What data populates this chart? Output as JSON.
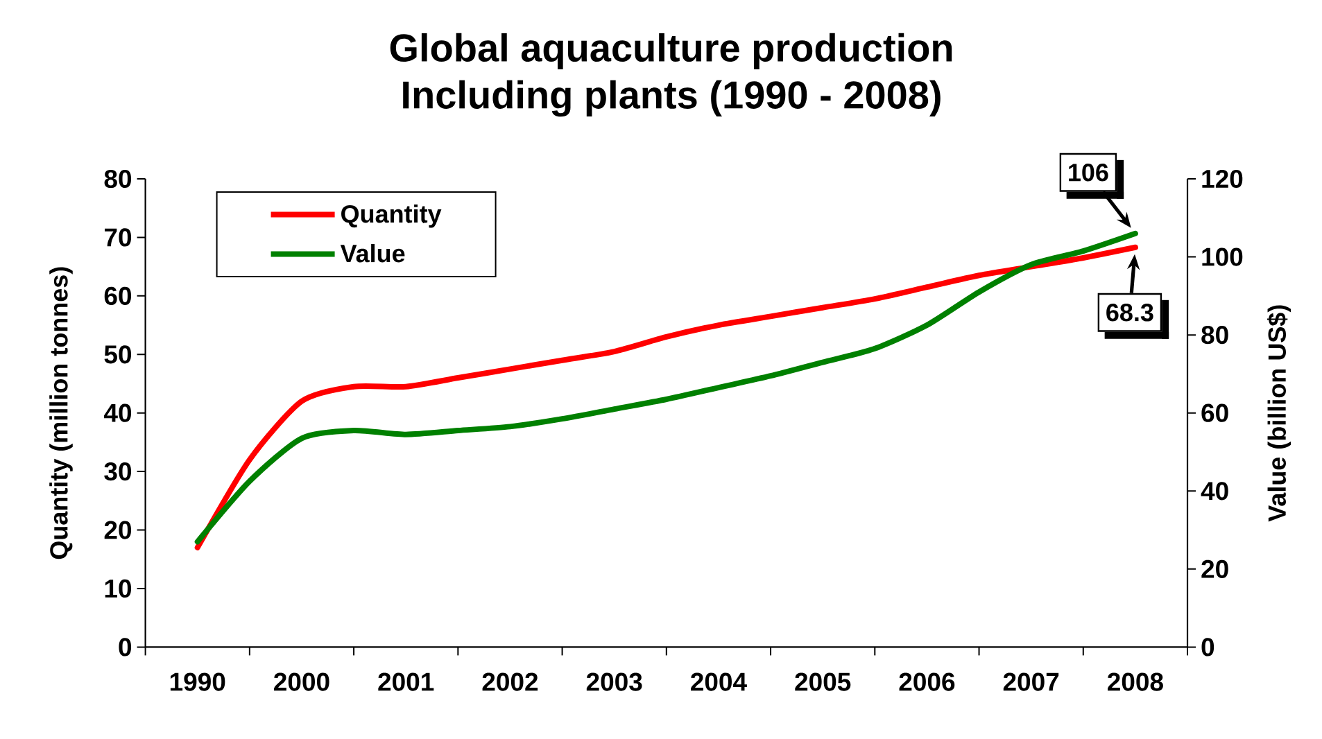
{
  "chart_data": {
    "type": "line",
    "title": "Global aquaculture production",
    "subtitle": "Including plants (1990 - 2008)",
    "ylabel": "Quantity (million tonnes)",
    "y2label": "Value (billion US$)",
    "categories": [
      "1990",
      null,
      "2000",
      null,
      "2001",
      null,
      "2002",
      null,
      "2003",
      null,
      "2004",
      null,
      "2005",
      null,
      "2006",
      null,
      "2007",
      null,
      "2008"
    ],
    "series": [
      {
        "name": "Quantity",
        "color": "#ff0000",
        "values": [
          17,
          32,
          42,
          44.5,
          44.5,
          46,
          47.5,
          49,
          50.5,
          53,
          55,
          56.5,
          58,
          59.5,
          61.5,
          63.5,
          65,
          66.5,
          68.3
        ],
        "value_labels": [
          null,
          null,
          null,
          null,
          null,
          null,
          null,
          null,
          null,
          null,
          null,
          null,
          null,
          null,
          null,
          null,
          null,
          null,
          "68.3"
        ]
      },
      {
        "name": "Value",
        "color": "#008000",
        "axis": "y2",
        "values": [
          27,
          42.5,
          53.5,
          55.5,
          54.5,
          55.5,
          56.5,
          58.5,
          61,
          63.5,
          66.5,
          69.5,
          73,
          76.5,
          82.5,
          91,
          98,
          101.5,
          106
        ],
        "value_labels": [
          null,
          null,
          null,
          null,
          null,
          null,
          null,
          null,
          null,
          null,
          null,
          null,
          null,
          null,
          null,
          null,
          null,
          null,
          "106"
        ]
      }
    ],
    "ylim": [
      0,
      80
    ],
    "yticks": [
      0,
      10,
      20,
      30,
      40,
      50,
      60,
      70,
      80
    ],
    "y2lim": [
      0,
      120
    ],
    "y2ticks": [
      0,
      20,
      40,
      60,
      80,
      100,
      120
    ],
    "legend": "top left",
    "marker": "none",
    "line_style": "solid"
  }
}
